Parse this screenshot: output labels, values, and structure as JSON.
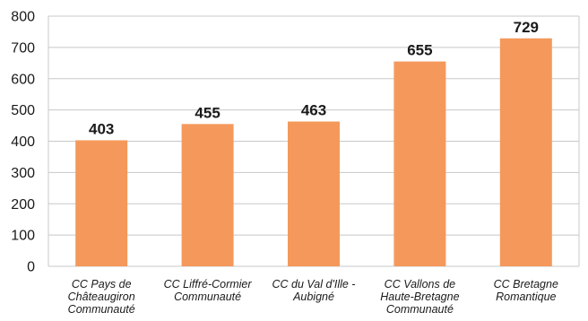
{
  "chart_data": {
    "type": "bar",
    "categories": [
      [
        "CC Pays de",
        "Châteaugiron",
        "Communauté"
      ],
      [
        "CC Liffré-Cormier",
        "Communauté"
      ],
      [
        "CC du Val d'Ille -",
        "Aubigné"
      ],
      [
        "CC Vallons de",
        "Haute-Bretagne",
        "Communauté"
      ],
      [
        "CC Bretagne",
        "Romantique"
      ]
    ],
    "values": [
      403,
      455,
      463,
      655,
      729
    ],
    "data_labels": [
      "403",
      "455",
      "463",
      "655",
      "729"
    ],
    "yticks": [
      "0",
      "100",
      "200",
      "300",
      "400",
      "500",
      "600",
      "700",
      "800"
    ],
    "ylim": [
      0,
      800
    ],
    "grid": true,
    "legend": "none",
    "bar_color": "#F4995B",
    "grid_color": "#c8c8c8",
    "title": "",
    "xlabel": "",
    "ylabel": ""
  }
}
